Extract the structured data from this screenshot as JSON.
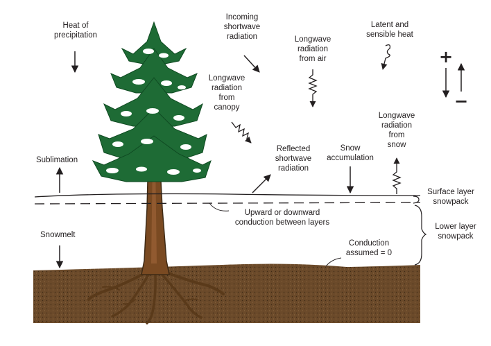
{
  "labels": {
    "heat_of_precipitation": "Heat of\nprecipitation",
    "incoming_shortwave": "Incoming\nshortwave\nradiation",
    "longwave_from_air": "Longwave\nradiation\nfrom air",
    "latent_sensible": "Latent and\nsensible heat",
    "plus_sign": "+",
    "minus_sign": "−",
    "longwave_from_canopy": "Longwave\nradiation\nfrom\ncanopy",
    "longwave_from_snow": "Longwave\nradiation\nfrom\nsnow",
    "sublimation": "Sublimation",
    "reflected_shortwave": "Reflected\nshortwave\nradiation",
    "snow_accumulation": "Snow\naccumulation",
    "surface_layer": "Surface layer\nsnowpack",
    "lower_layer": "Lower layer\nsnowpack",
    "conduction_between_layers": "Upward or downward\nconduction between layers",
    "snowmelt": "Snowmelt",
    "conduction_zero": "Conduction\nassumed = 0"
  },
  "colors": {
    "soil": "#6b4a2a",
    "trunk": "#7a4a22",
    "foliage": "#1e6b35",
    "line": "#231f20"
  }
}
